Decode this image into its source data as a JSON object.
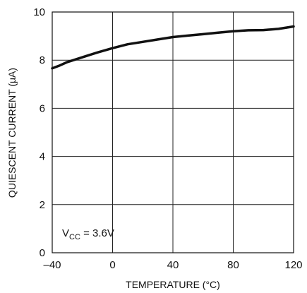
{
  "chart_data": {
    "type": "line",
    "xlabel": "TEMPERATURE (°C)",
    "ylabel": "QUIESCENT CURRENT (μA)",
    "xlim": [
      -40,
      120
    ],
    "ylim": [
      0,
      10
    ],
    "xticks": [
      -40,
      0,
      40,
      80,
      120
    ],
    "yticks": [
      0,
      2,
      4,
      6,
      8,
      10
    ],
    "xtick_labels": [
      "–40",
      "0",
      "40",
      "80",
      "120"
    ],
    "ytick_labels": [
      "0",
      "2",
      "4",
      "6",
      "8",
      "10"
    ],
    "grid": true,
    "annotation": {
      "main": "V",
      "sub": "CC",
      "rest": " = 3.6V"
    },
    "series": [
      {
        "x": [
          -40,
          -35,
          -30,
          -20,
          -10,
          0,
          10,
          20,
          30,
          40,
          50,
          60,
          70,
          80,
          90,
          100,
          110,
          120
        ],
        "y": [
          7.66,
          7.78,
          7.92,
          8.12,
          8.32,
          8.5,
          8.66,
          8.76,
          8.86,
          8.96,
          9.02,
          9.08,
          9.14,
          9.2,
          9.24,
          9.25,
          9.3,
          9.4
        ]
      }
    ]
  }
}
